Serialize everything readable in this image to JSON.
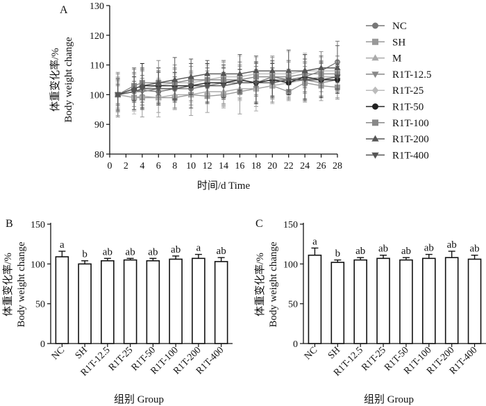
{
  "chart_data": [
    {
      "panel": "A",
      "type": "line",
      "ylabel": [
        "体重变化率/%",
        "Body weight change"
      ],
      "xlabel": "时间/d  Time",
      "ylim": [
        80,
        130
      ],
      "yticks": [
        80,
        90,
        100,
        110,
        120,
        130
      ],
      "xlim": [
        0,
        28
      ],
      "xticks": [
        0,
        2,
        4,
        6,
        8,
        10,
        12,
        14,
        16,
        18,
        20,
        22,
        24,
        26,
        28
      ],
      "x": [
        1,
        3,
        4,
        6,
        8,
        10,
        12,
        14,
        16,
        18,
        20,
        22,
        24,
        26,
        28
      ],
      "series": [
        {
          "name": "NC",
          "marker": "circle",
          "color": "#777777",
          "values": [
            100,
            101,
            101.5,
            101,
            102,
            102,
            103,
            104,
            105,
            104,
            106,
            105,
            106,
            108,
            111
          ]
        },
        {
          "name": "SH",
          "marker": "square",
          "color": "#999999",
          "values": [
            100,
            99,
            99,
            99,
            99,
            100,
            99.5,
            100,
            101,
            102,
            103,
            101,
            104,
            103,
            102.5
          ]
        },
        {
          "name": "M",
          "marker": "triangle-up",
          "color": "#aaaaaa",
          "values": [
            100,
            99,
            99.5,
            99,
            100,
            100,
            101,
            101,
            102,
            102,
            103,
            104,
            105,
            106,
            106
          ]
        },
        {
          "name": "R1T-12.5",
          "marker": "triangle-down",
          "color": "#888888",
          "values": [
            100,
            101,
            101,
            102,
            102,
            103,
            103,
            104,
            104,
            104,
            105,
            105,
            105,
            104,
            105
          ]
        },
        {
          "name": "R1T-25",
          "marker": "diamond",
          "color": "#bbbbbb",
          "values": [
            100,
            101,
            102,
            103,
            104,
            104,
            105,
            106,
            106,
            107,
            107,
            107,
            108,
            108,
            108
          ]
        },
        {
          "name": "R1T-50",
          "marker": "circle",
          "color": "#222222",
          "values": [
            100,
            102,
            103,
            103,
            103,
            103,
            104,
            104,
            105,
            104,
            105,
            104,
            106,
            105,
            105
          ]
        },
        {
          "name": "R1T-100",
          "marker": "square",
          "color": "#888888",
          "values": [
            100,
            103,
            104,
            104,
            104,
            105,
            105,
            105,
            105,
            106,
            106,
            106,
            107,
            107,
            107
          ]
        },
        {
          "name": "R1T-200",
          "marker": "triangle-up",
          "color": "#555555",
          "values": [
            100,
            102,
            103,
            104,
            105,
            106,
            107,
            107,
            107,
            108,
            108,
            108,
            108,
            109,
            109
          ]
        },
        {
          "name": "R1T-400",
          "marker": "triangle-down",
          "color": "#555555",
          "values": [
            100,
            101,
            102,
            102,
            102,
            103,
            103,
            103,
            104,
            104,
            104,
            105,
            105,
            105,
            106
          ]
        }
      ],
      "error": 5,
      "legend": [
        "NC",
        "SH",
        "M",
        "R1T-12.5",
        "R1T-25",
        "R1T-50",
        "R1T-100",
        "R1T-200",
        "R1T-400"
      ],
      "legend_position": "right"
    },
    {
      "panel": "B",
      "type": "bar",
      "ylabel": [
        "体重变化率/%",
        "Body weight change"
      ],
      "xlabel": "组别  Group",
      "ylim": [
        0,
        150
      ],
      "yticks": [
        0,
        50,
        100,
        150
      ],
      "categories": [
        "NC",
        "SH",
        "R1T-12.5",
        "R1T-25",
        "R1T-50",
        "R1T-100",
        "R1T-200",
        "R1T-400"
      ],
      "values": [
        109,
        100,
        104,
        105,
        104,
        106,
        107,
        103
      ],
      "errors": [
        7,
        4,
        3,
        2,
        3,
        4,
        5,
        5
      ],
      "labels": [
        "a",
        "b",
        "ab",
        "ab",
        "ab",
        "ab",
        "a",
        "ab"
      ]
    },
    {
      "panel": "C",
      "type": "bar",
      "ylabel": [
        "体重变化率/%",
        "Body weight change"
      ],
      "xlabel": "组别  Group",
      "ylim": [
        0,
        150
      ],
      "yticks": [
        0,
        50,
        100,
        150
      ],
      "categories": [
        "NC",
        "SH",
        "R1T-12.5",
        "R1T-25",
        "R1T-50",
        "R1T-100",
        "R1T-200",
        "R1T-400"
      ],
      "values": [
        111,
        102,
        105,
        107,
        105,
        107,
        108,
        106
      ],
      "errors": [
        9,
        3,
        3,
        4,
        3,
        5,
        8,
        5
      ],
      "labels": [
        "a",
        "b",
        "ab",
        "ab",
        "ab",
        "ab",
        "ab",
        "ab"
      ]
    }
  ]
}
